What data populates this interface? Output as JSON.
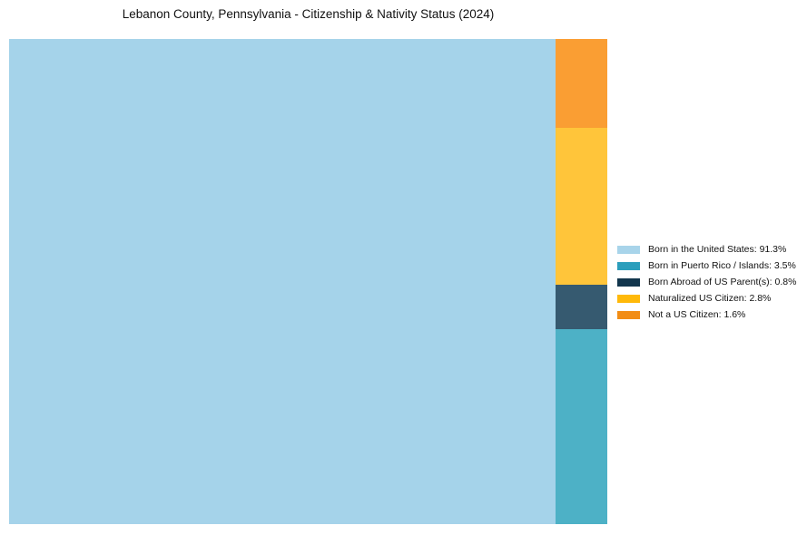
{
  "title": "Lebanon County, Pennsylvania - Citizenship & Nativity Status (2024)",
  "chart_data": {
    "type": "treemap",
    "title": "Lebanon County, Pennsylvania - Citizenship & Nativity Status (2024)",
    "unit": "%",
    "categories": [
      "Born in the United States",
      "Born in Puerto Rico / Islands",
      "Born Abroad of US Parent(s)",
      "Naturalized US Citizen",
      "Not a US Citizen"
    ],
    "values": [
      91.3,
      3.5,
      0.8,
      2.8,
      1.6
    ],
    "main_block_index": 0,
    "column_stack_top_to_bottom": [
      4,
      3,
      2,
      1
    ],
    "block_colors": [
      "#A5D3EA",
      "#4DB1C6",
      "#365A70",
      "#FFC53A",
      "#FA9E33"
    ],
    "legend_colors": [
      "#A8D4EA",
      "#2B9EBC",
      "#12364D",
      "#FFB90A",
      "#F28D15"
    ],
    "legend_position": "right",
    "legend_labels": [
      "Born in the United States: 91.3%",
      "Born in Puerto Rico / Islands: 3.5%",
      "Born Abroad of US Parent(s): 0.8%",
      "Naturalized US Citizen: 2.8%",
      "Not a US Citizen: 1.6%"
    ],
    "grid": false,
    "axes_visible": false
  }
}
